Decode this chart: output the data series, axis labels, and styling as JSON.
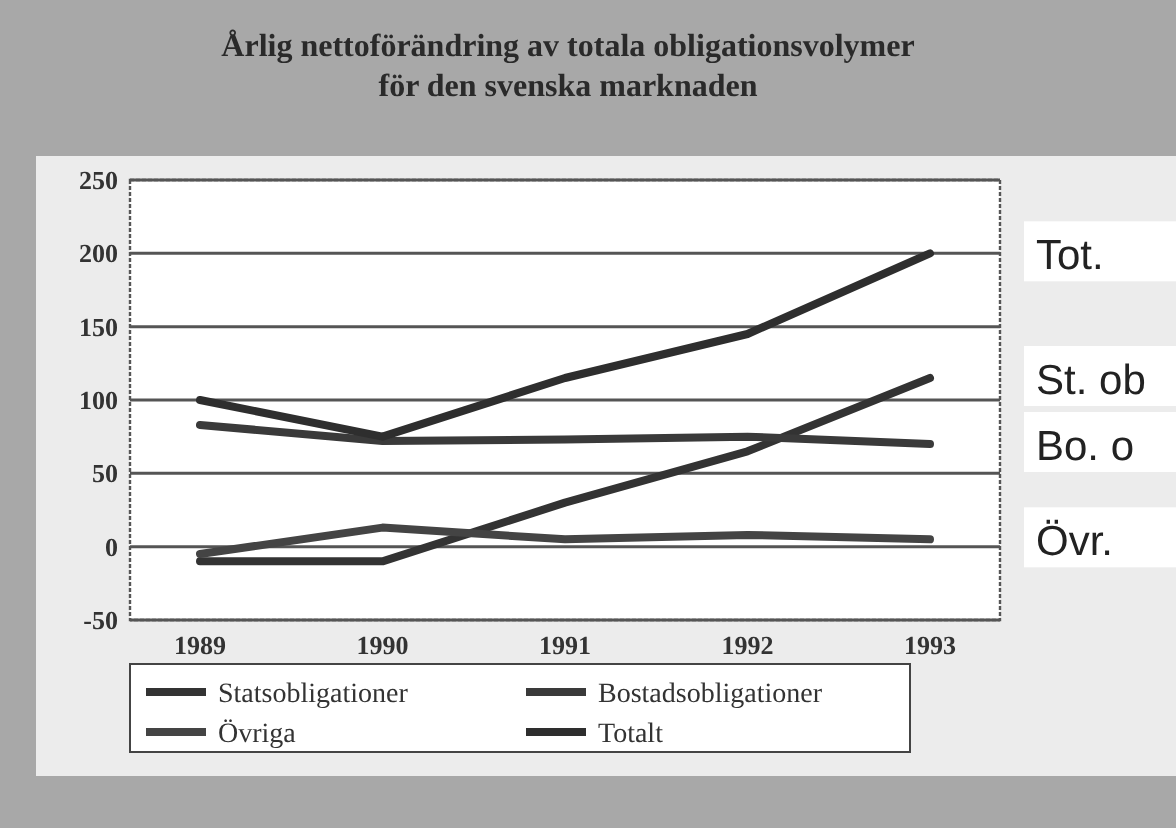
{
  "chart_data": {
    "type": "line",
    "title": "Årlig nettoförändring av totala obligationsvolymer",
    "subtitle": "för den svenska marknaden",
    "categories": [
      "1989",
      "1990",
      "1991",
      "1992",
      "1993"
    ],
    "ylim": [
      -50,
      250
    ],
    "yticks": [
      -50,
      0,
      50,
      100,
      150,
      200,
      250
    ],
    "grid": "y",
    "legend": "bottom",
    "series": [
      {
        "name": "Statsobligationer",
        "color": "#333333",
        "values": [
          -10,
          -10,
          30,
          65,
          115
        ]
      },
      {
        "name": "Bostadsobligationer",
        "color": "#3a3a3a",
        "values": [
          83,
          72,
          73,
          75,
          70
        ]
      },
      {
        "name": "Övriga",
        "color": "#444444",
        "values": [
          -5,
          13,
          5,
          8,
          5
        ]
      },
      {
        "name": "Totalt",
        "color": "#2e2e2e",
        "values": [
          100,
          75,
          115,
          145,
          200
        ]
      }
    ],
    "annotations": [
      {
        "text": "Tot.",
        "x": "1993",
        "y": 200
      },
      {
        "text": "St. ob",
        "x": "1993",
        "y": 115
      },
      {
        "text": "Bo. o",
        "x": "1993",
        "y": 70
      },
      {
        "text": "Övr.",
        "x": "1993",
        "y": 5
      }
    ]
  }
}
